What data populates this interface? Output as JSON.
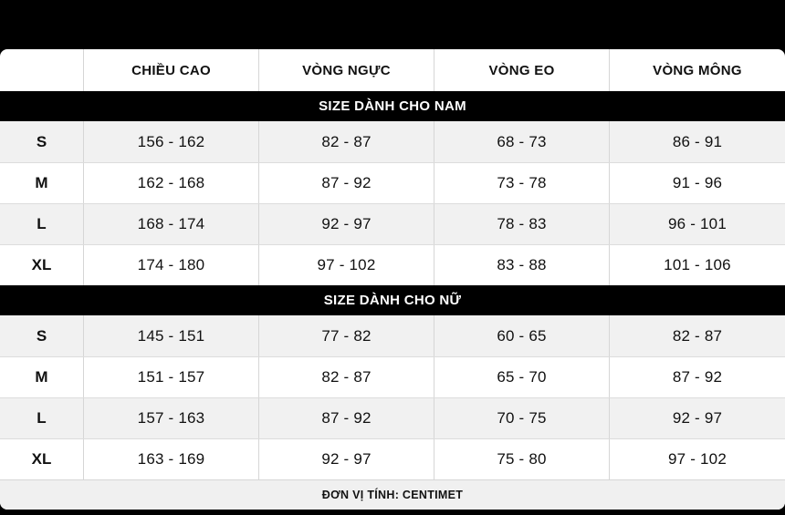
{
  "chart_data": {
    "type": "table",
    "columns": [
      "",
      "CHIỀU CAO",
      "VÒNG NGỰC",
      "VÒNG EO",
      "VÒNG MÔNG"
    ],
    "sections": [
      {
        "title": "SIZE DÀNH CHO NAM",
        "rows": [
          {
            "size": "S",
            "height": "156 - 162",
            "chest": "82 - 87",
            "waist": "68 - 73",
            "hip": "86 - 91"
          },
          {
            "size": "M",
            "height": "162 - 168",
            "chest": "87 - 92",
            "waist": "73 - 78",
            "hip": "91 - 96"
          },
          {
            "size": "L",
            "height": "168 - 174",
            "chest": "92 - 97",
            "waist": "78 - 83",
            "hip": "96 - 101"
          },
          {
            "size": "XL",
            "height": "174 - 180",
            "chest": "97 - 102",
            "waist": "83 - 88",
            "hip": "101 - 106"
          }
        ]
      },
      {
        "title": "SIZE DÀNH CHO NỮ",
        "rows": [
          {
            "size": "S",
            "height": "145 - 151",
            "chest": "77 - 82",
            "waist": "60 - 65",
            "hip": "82 - 87"
          },
          {
            "size": "M",
            "height": "151 - 157",
            "chest": "82 - 87",
            "waist": "65 - 70",
            "hip": "87 - 92"
          },
          {
            "size": "L",
            "height": "157 - 163",
            "chest": "87 - 92",
            "waist": "70 - 75",
            "hip": "92 - 97"
          },
          {
            "size": "XL",
            "height": "163 - 169",
            "chest": "92 - 97",
            "waist": "75 - 80",
            "hip": "97 - 102"
          }
        ]
      }
    ],
    "footer": "ĐƠN VỊ TÍNH: CENTIMET"
  },
  "colors": {
    "page_background": "#000000",
    "table_background": "#ffffff",
    "band_background": "#000000",
    "band_text": "#ffffff",
    "alt_row_background": "#f1f1f1",
    "footer_background": "#f0f0f0",
    "border": "#d6d6d6",
    "text": "#111111"
  }
}
